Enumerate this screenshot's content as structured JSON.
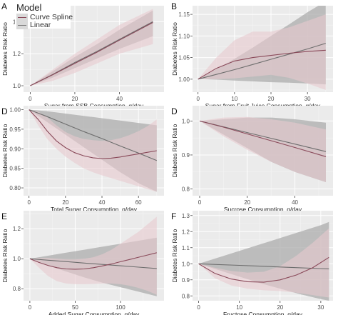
{
  "legend": {
    "title": "Model",
    "items": [
      {
        "label": "Curve Spline",
        "color": "#8a4a5a",
        "band": "#e3c5cc"
      },
      {
        "label": "Linear",
        "color": "#7a7a7a",
        "band": "#b3b3b3"
      }
    ]
  },
  "colors": {
    "panel_bg": "#ebebeb",
    "grid_major": "#ffffff",
    "grid_minor": "#f4f4f4",
    "spline_line": "#8a4a5a",
    "spline_band": "#e8c9cf",
    "linear_line": "#6e6e6e",
    "linear_band": "#a9a9a9"
  },
  "chart_data": [
    {
      "panel": "A",
      "type": "line",
      "xlabel": "Sugar from SSB Consumption, g/day",
      "ylabel": "Diabetes Risk Ratio",
      "xlim": [
        -3,
        60
      ],
      "ylim": [
        0.96,
        1.5
      ],
      "xticks": [
        0,
        20,
        40
      ],
      "yticks": [
        1.0,
        1.2,
        1.4
      ],
      "ytick_labels": [
        "1.0",
        "1.2",
        "1.4"
      ],
      "series": [
        {
          "model": "Linear",
          "x": [
            0,
            10,
            20,
            30,
            40,
            55
          ],
          "y": [
            1.0,
            1.07,
            1.145,
            1.215,
            1.29,
            1.4
          ],
          "lower": [
            1.0,
            1.05,
            1.11,
            1.17,
            1.23,
            1.31
          ],
          "upper": [
            1.0,
            1.09,
            1.18,
            1.26,
            1.35,
            1.47
          ]
        },
        {
          "model": "Curve Spline",
          "x": [
            0,
            10,
            20,
            30,
            40,
            55
          ],
          "y": [
            1.0,
            1.068,
            1.14,
            1.21,
            1.285,
            1.395
          ],
          "lower": [
            1.0,
            1.03,
            1.08,
            1.14,
            1.2,
            1.26
          ],
          "upper": [
            1.0,
            1.1,
            1.2,
            1.29,
            1.38,
            1.48
          ]
        }
      ]
    },
    {
      "panel": "B",
      "type": "line",
      "xlabel": "Sugar from Fruit Juice Consumption, g/day",
      "ylabel": "Diabetes Risk Ratio",
      "xlim": [
        -1.5,
        37
      ],
      "ylim": [
        0.97,
        1.17
      ],
      "xticks": [
        0,
        10,
        20,
        30
      ],
      "yticks": [
        1.0,
        1.05,
        1.1,
        1.15
      ],
      "ytick_labels": [
        "1.00",
        "1.05",
        "1.10",
        "1.15"
      ],
      "series": [
        {
          "model": "Linear",
          "x": [
            0,
            5,
            10,
            15,
            20,
            25,
            30,
            35
          ],
          "y": [
            1.0,
            1.011,
            1.022,
            1.034,
            1.046,
            1.058,
            1.07,
            1.083
          ],
          "lower": [
            1.0,
            0.999,
            0.997,
            0.995,
            0.993,
            0.992,
            0.99,
            0.988
          ],
          "upper": [
            1.0,
            1.023,
            1.047,
            1.073,
            1.1,
            1.127,
            1.155,
            1.18
          ]
        },
        {
          "model": "Curve Spline",
          "x": [
            0,
            5,
            10,
            15,
            20,
            25,
            30,
            35
          ],
          "y": [
            1.0,
            1.025,
            1.042,
            1.05,
            1.055,
            1.06,
            1.064,
            1.067
          ],
          "lower": [
            1.0,
            1.0,
            1.002,
            1.006,
            1.01,
            1.003,
            0.99,
            0.975
          ],
          "upper": [
            1.0,
            1.05,
            1.09,
            1.11,
            1.11,
            1.12,
            1.135,
            1.15
          ]
        }
      ]
    },
    {
      "panel": "D",
      "type": "line",
      "xlabel": "Total Sugar Consumption, g/day",
      "ylabel": "Diabetes Risk Ratio",
      "xlim": [
        -3,
        74
      ],
      "ylim": [
        0.78,
        1.01
      ],
      "xticks": [
        0,
        20,
        40,
        60
      ],
      "yticks": [
        0.8,
        0.85,
        0.9,
        0.95,
        1.0
      ],
      "ytick_labels": [
        "0.80",
        "0.85",
        "0.90",
        "0.95",
        "1.00"
      ],
      "series": [
        {
          "model": "Linear",
          "x": [
            0,
            10,
            20,
            30,
            40,
            50,
            60,
            70
          ],
          "y": [
            1.0,
            0.982,
            0.963,
            0.944,
            0.926,
            0.907,
            0.889,
            0.87
          ],
          "lower": [
            1.0,
            0.968,
            0.936,
            0.904,
            0.872,
            0.84,
            0.812,
            0.79
          ],
          "upper": [
            1.0,
            0.996,
            0.99,
            0.984,
            0.978,
            0.972,
            0.966,
            0.96
          ]
        },
        {
          "model": "Curve Spline",
          "x": [
            0,
            5,
            10,
            15,
            20,
            25,
            30,
            35,
            40,
            45,
            50,
            55,
            60,
            65,
            70
          ],
          "y": [
            1.0,
            0.975,
            0.945,
            0.92,
            0.903,
            0.89,
            0.882,
            0.877,
            0.875,
            0.876,
            0.879,
            0.883,
            0.887,
            0.891,
            0.895
          ],
          "lower": [
            1.0,
            0.96,
            0.925,
            0.9,
            0.88,
            0.864,
            0.85,
            0.84,
            0.832,
            0.825,
            0.818,
            0.811,
            0.804,
            0.797,
            0.79
          ],
          "upper": [
            1.0,
            0.995,
            0.98,
            0.96,
            0.943,
            0.932,
            0.925,
            0.922,
            0.92,
            0.922,
            0.927,
            0.935,
            0.945,
            0.958,
            0.975
          ]
        }
      ]
    },
    {
      "panel": "D",
      "type": "line",
      "xlabel": "Sucrose Consumption, g/day",
      "ylabel": "Diabetes Risk Ratio",
      "xlim": [
        -3,
        56
      ],
      "ylim": [
        0.78,
        1.045
      ],
      "xticks": [
        0,
        20,
        40
      ],
      "yticks": [
        0.8,
        0.9,
        1.0
      ],
      "ytick_labels": [
        "0.8",
        "0.9",
        "1.0"
      ],
      "series": [
        {
          "model": "Linear",
          "x": [
            0,
            10,
            20,
            30,
            40,
            53
          ],
          "y": [
            1.0,
            0.983,
            0.966,
            0.949,
            0.932,
            0.91
          ],
          "lower": [
            1.0,
            0.96,
            0.92,
            0.88,
            0.85,
            0.82
          ],
          "upper": [
            1.0,
            1.005,
            1.01,
            1.01,
            1.005,
            0.995
          ]
        },
        {
          "model": "Curve Spline",
          "x": [
            0,
            10,
            20,
            30,
            40,
            53
          ],
          "y": [
            1.0,
            0.982,
            0.962,
            0.942,
            0.922,
            0.895
          ],
          "lower": [
            1.0,
            0.955,
            0.915,
            0.88,
            0.85,
            0.82
          ],
          "upper": [
            1.0,
            1.01,
            1.012,
            1.005,
            0.995,
            0.975
          ]
        }
      ]
    },
    {
      "panel": "E",
      "type": "line",
      "xlabel": "Added Sugar Consumption, g/day",
      "ylabel": "Diabetes Risk Ratio",
      "xlim": [
        -7,
        148
      ],
      "ylim": [
        0.72,
        1.32
      ],
      "xticks": [
        0,
        50,
        100
      ],
      "yticks": [
        0.8,
        1.0,
        1.2
      ],
      "ytick_labels": [
        "0.8",
        "1.0",
        "1.2"
      ],
      "series": [
        {
          "model": "Linear",
          "x": [
            0,
            20,
            40,
            60,
            80,
            100,
            120,
            140
          ],
          "y": [
            1.0,
            0.99,
            0.981,
            0.971,
            0.962,
            0.953,
            0.944,
            0.935
          ],
          "lower": [
            1.0,
            0.955,
            0.915,
            0.875,
            0.84,
            0.81,
            0.78,
            0.75
          ],
          "upper": [
            1.0,
            1.02,
            1.04,
            1.06,
            1.08,
            1.1,
            1.12,
            1.14
          ]
        },
        {
          "model": "Curve Spline",
          "x": [
            0,
            10,
            20,
            30,
            40,
            50,
            60,
            70,
            80,
            90,
            100,
            110,
            120,
            130,
            140
          ],
          "y": [
            1.0,
            0.975,
            0.955,
            0.94,
            0.932,
            0.93,
            0.932,
            0.94,
            0.952,
            0.965,
            0.98,
            0.995,
            1.01,
            1.025,
            1.04
          ],
          "lower": [
            1.0,
            0.94,
            0.885,
            0.85,
            0.835,
            0.83,
            0.83,
            0.832,
            0.835,
            0.835,
            0.83,
            0.82,
            0.805,
            0.785,
            0.76
          ],
          "upper": [
            1.0,
            1.005,
            1.005,
            1.0,
            0.995,
            0.995,
            1.0,
            1.01,
            1.03,
            1.06,
            1.1,
            1.14,
            1.18,
            1.23,
            1.28
          ]
        }
      ]
    },
    {
      "panel": "F",
      "type": "line",
      "xlabel": "Fructose Consumption, g/day",
      "ylabel": "Diabetes Risk Ratio",
      "xlim": [
        -1.5,
        33
      ],
      "ylim": [
        0.77,
        1.33
      ],
      "xticks": [
        0,
        10,
        20,
        30
      ],
      "yticks": [
        0.8,
        0.9,
        1.0,
        1.1,
        1.2,
        1.3
      ],
      "ytick_labels": [
        "0.8",
        "0.9",
        "1.0",
        "1.1",
        "1.2",
        "1.3"
      ],
      "series": [
        {
          "model": "Linear",
          "x": [
            0,
            5,
            10,
            15,
            20,
            25,
            30,
            32
          ],
          "y": [
            1.0,
            0.995,
            0.99,
            0.985,
            0.98,
            0.975,
            0.97,
            0.968
          ],
          "lower": [
            1.0,
            0.96,
            0.92,
            0.88,
            0.845,
            0.81,
            0.78,
            0.77
          ],
          "upper": [
            1.0,
            1.04,
            1.08,
            1.12,
            1.16,
            1.2,
            1.24,
            1.26
          ]
        },
        {
          "model": "Curve Spline",
          "x": [
            0,
            4,
            8,
            12,
            16,
            20,
            24,
            28,
            32
          ],
          "y": [
            1.0,
            0.94,
            0.905,
            0.888,
            0.885,
            0.9,
            0.93,
            0.975,
            1.04
          ],
          "lower": [
            1.0,
            0.91,
            0.865,
            0.845,
            0.835,
            0.83,
            0.82,
            0.805,
            0.79
          ],
          "upper": [
            1.0,
            0.975,
            0.955,
            0.945,
            0.95,
            0.985,
            1.05,
            1.13,
            1.22
          ]
        }
      ]
    }
  ],
  "panel_labels": [
    "A",
    "B",
    "D",
    "D",
    "E",
    "F"
  ]
}
